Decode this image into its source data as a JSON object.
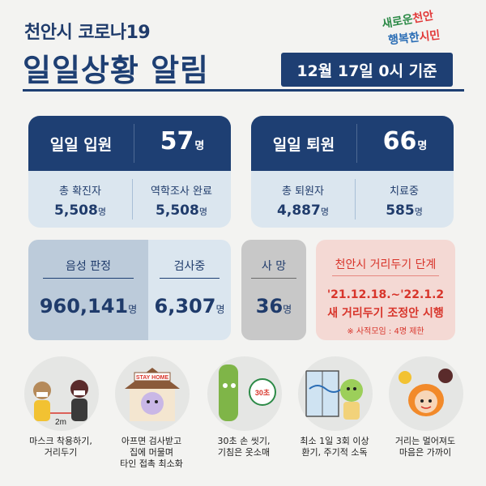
{
  "header": {
    "subtitle": "천안시 코로나19",
    "title": "일일상황 알림",
    "date": "12월 17일 0시 기준",
    "slogan_line1_a": "새로운",
    "slogan_line1_b": "천안",
    "slogan_line2_a": "행복한",
    "slogan_line2_b": "시민"
  },
  "admission": {
    "label": "일일 입원",
    "value": "57",
    "unit": "명",
    "sub": [
      {
        "label": "총 확진자",
        "value": "5,508",
        "unit": "명"
      },
      {
        "label": "역학조사 완료",
        "value": "5,508",
        "unit": "명"
      }
    ]
  },
  "discharge": {
    "label": "일일 퇴원",
    "value": "66",
    "unit": "명",
    "sub": [
      {
        "label": "총 퇴원자",
        "value": "4,887",
        "unit": "명"
      },
      {
        "label": "치료중",
        "value": "585",
        "unit": "명"
      }
    ]
  },
  "tests": {
    "negative_label": "음성 판정",
    "negative_value": "960,141",
    "testing_label": "검사중",
    "testing_value": "6,307",
    "unit": "명"
  },
  "deaths": {
    "label": "사 망",
    "value": "36",
    "unit": "명"
  },
  "distancing": {
    "title": "천안시 거리두기 단계",
    "period": "'21.12.18.~'22.1.2",
    "message": "새 거리두기 조정안 시행",
    "note": "※ 사적모임 : 4명 제한"
  },
  "tips": [
    {
      "caption": "마스크 착용하기,\n거리두기",
      "badge": "2m"
    },
    {
      "caption": "아프면 검사받고\n집에 머물며\n타인 접촉 최소화",
      "badge": "STAY HOME"
    },
    {
      "caption": "30초 손 씻기,\n기침은 옷소매",
      "badge": "30초"
    },
    {
      "caption": "최소 1일 3회 이상\n환기, 주기적 소독",
      "badge": ""
    },
    {
      "caption": "거리는 멀어져도\n마음은 가까이",
      "badge": ""
    }
  ],
  "colors": {
    "navy": "#1e3f73",
    "light_blue": "#dbe6ef",
    "red": "#d8352b",
    "gray": "#c8c8c8"
  }
}
